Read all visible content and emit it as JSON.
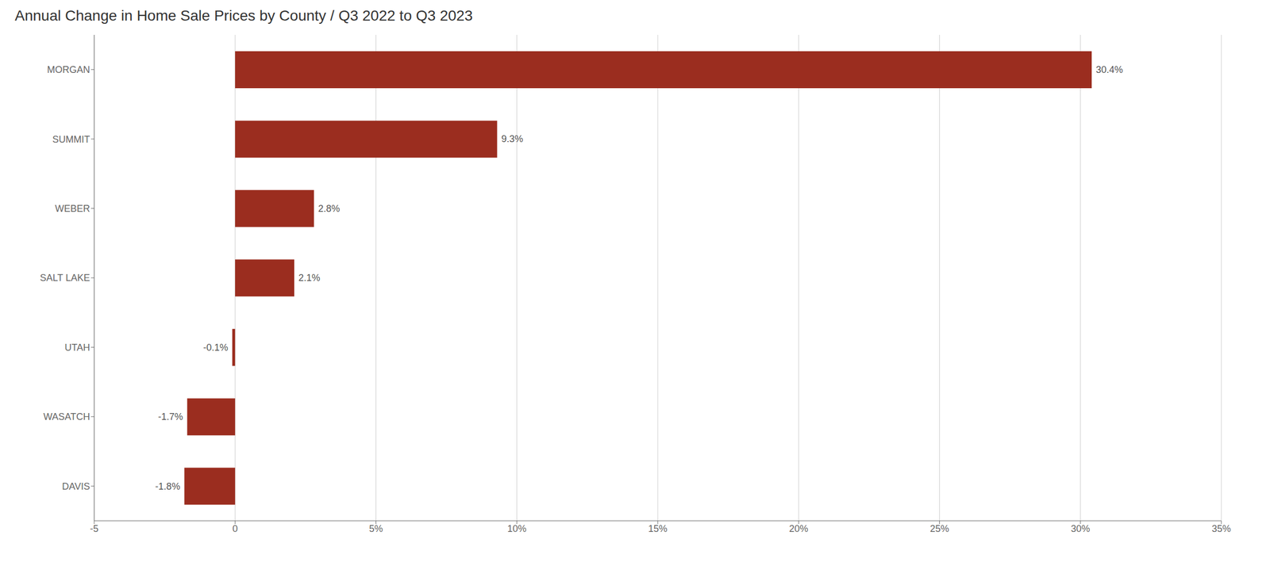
{
  "chart_data": {
    "type": "bar",
    "orientation": "horizontal",
    "title": "Annual Change in Home Sale Prices by County   /   Q3 2022 to Q3 2023",
    "categories": [
      "MORGAN",
      "SUMMIT",
      "WEBER",
      "SALT LAKE",
      "UTAH",
      "WASATCH",
      "DAVIS"
    ],
    "values": [
      30.4,
      9.3,
      2.8,
      2.1,
      -0.1,
      -1.7,
      -1.8
    ],
    "value_labels": [
      "30.4%",
      "9.3%",
      "2.8%",
      "2.1%",
      "-0.1%",
      "-1.7%",
      "-1.8%"
    ],
    "data_labels": true,
    "color": "#9B2D1F",
    "xlim": [
      -5,
      35
    ],
    "xticks": [
      -5,
      0,
      {
        "value": 5,
        "label": "5%"
      },
      {
        "value": 10,
        "label": "10%"
      },
      {
        "value": 15,
        "label": "15%"
      },
      {
        "value": 20,
        "label": "20%"
      },
      {
        "value": 25,
        "label": "25%"
      },
      {
        "value": 30,
        "label": "30%"
      },
      {
        "value": 35,
        "label": "35%"
      }
    ],
    "grid": true
  }
}
